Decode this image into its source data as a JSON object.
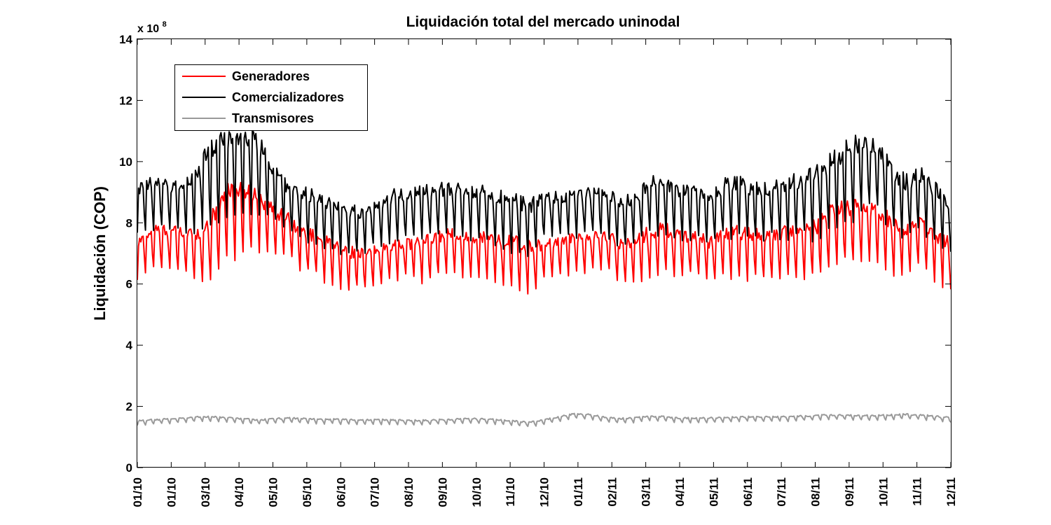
{
  "chart_data": {
    "type": "line",
    "title": "Liquidación total del mercado uninodal",
    "xlabel": "",
    "ylabel": "Liquidación (COP)",
    "y_multiplier_label": "x 10",
    "y_multiplier_exponent": "8",
    "ylim": [
      0,
      14
    ],
    "y_ticks": [
      0,
      2,
      4,
      6,
      8,
      10,
      12,
      14
    ],
    "y_tick_labels": [
      "0",
      "2",
      "4",
      "6",
      "8",
      "10",
      "12",
      "14"
    ],
    "x_tick_labels": [
      "01/10",
      "01/10",
      "03/10",
      "04/10",
      "05/10",
      "05/10",
      "06/10",
      "07/10",
      "08/10",
      "09/10",
      "10/10",
      "11/10",
      "12/10",
      "01/11",
      "02/11",
      "03/11",
      "04/11",
      "05/11",
      "06/11",
      "07/11",
      "08/11",
      "09/11",
      "10/11",
      "11/11",
      "12/11"
    ],
    "xlim": [
      0,
      24
    ],
    "grid": false,
    "legend_position": "top-left",
    "series": [
      {
        "name": "Generadores",
        "color": "#ff0000",
        "base": [
          7.0,
          7.4,
          7.4,
          7.3,
          7.3,
          7.5,
          8.5,
          8.6,
          8.4,
          8.0,
          7.8,
          7.3,
          7.2,
          6.9,
          6.7,
          6.7,
          6.8,
          7.0,
          7.0,
          7.0,
          7.2,
          7.3,
          7.2,
          7.2,
          7.0,
          7.0,
          6.8,
          7.0,
          7.1,
          7.2,
          7.2,
          7.3,
          7.0,
          7.0,
          7.3,
          7.4,
          7.2,
          7.2,
          7.0,
          7.3,
          7.3,
          7.2,
          7.2,
          7.3,
          7.3,
          7.4,
          7.8,
          8.0,
          8.0,
          8.0,
          7.6,
          7.4,
          7.6,
          7.2,
          6.9
        ],
        "amp": [
          0.6,
          0.7,
          0.7,
          0.7,
          0.8,
          1.2,
          1.3,
          1.1,
          1.0,
          0.8,
          0.7,
          0.7,
          0.7,
          0.7,
          0.7,
          0.6,
          0.6,
          0.6,
          0.6,
          0.7,
          0.7,
          0.7,
          0.7,
          0.7,
          0.8,
          0.8,
          0.8,
          0.6,
          0.6,
          0.6,
          0.6,
          0.6,
          0.7,
          0.7,
          0.8,
          0.8,
          0.7,
          0.7,
          0.7,
          0.8,
          0.8,
          0.8,
          0.8,
          0.8,
          0.8,
          0.9,
          1.0,
          1.0,
          1.0,
          0.9,
          0.9,
          0.8,
          0.8,
          0.8,
          0.8
        ]
      },
      {
        "name": "Comercializadores",
        "color": "#000000",
        "base": [
          8.6,
          8.9,
          8.8,
          8.8,
          9.1,
          9.8,
          10.0,
          10.2,
          10.0,
          9.2,
          8.8,
          8.6,
          8.4,
          8.2,
          8.0,
          8.0,
          8.2,
          8.5,
          8.5,
          8.6,
          8.7,
          8.7,
          8.6,
          8.6,
          8.4,
          8.3,
          8.1,
          8.4,
          8.5,
          8.5,
          8.6,
          8.6,
          8.3,
          8.4,
          8.8,
          8.9,
          8.6,
          8.6,
          8.4,
          8.8,
          8.8,
          8.7,
          8.7,
          8.8,
          8.9,
          9.0,
          9.4,
          9.7,
          10.0,
          9.9,
          9.2,
          8.8,
          9.1,
          8.6,
          8.2
        ],
        "amp": [
          0.8,
          0.8,
          0.8,
          0.8,
          1.0,
          1.5,
          1.6,
          1.4,
          1.3,
          0.9,
          0.8,
          0.8,
          0.8,
          0.8,
          0.8,
          0.7,
          0.7,
          0.8,
          0.8,
          0.8,
          0.8,
          0.8,
          0.8,
          0.8,
          0.9,
          0.9,
          0.9,
          0.7,
          0.7,
          0.7,
          0.7,
          0.7,
          0.8,
          0.8,
          0.9,
          0.9,
          0.8,
          0.8,
          0.8,
          0.9,
          0.9,
          0.9,
          0.9,
          1.0,
          1.0,
          1.1,
          1.2,
          1.3,
          1.3,
          1.1,
          1.1,
          1.0,
          1.0,
          0.9,
          0.8
        ]
      },
      {
        "name": "Transmisores",
        "color": "#999999",
        "base": [
          1.48,
          1.52,
          1.55,
          1.58,
          1.62,
          1.62,
          1.6,
          1.55,
          1.52,
          1.55,
          1.58,
          1.56,
          1.54,
          1.54,
          1.52,
          1.52,
          1.52,
          1.52,
          1.5,
          1.5,
          1.52,
          1.54,
          1.56,
          1.55,
          1.52,
          1.48,
          1.44,
          1.52,
          1.62,
          1.72,
          1.7,
          1.6,
          1.56,
          1.58,
          1.64,
          1.62,
          1.58,
          1.58,
          1.58,
          1.6,
          1.62,
          1.62,
          1.62,
          1.62,
          1.64,
          1.66,
          1.68,
          1.68,
          1.66,
          1.66,
          1.68,
          1.7,
          1.68,
          1.64,
          1.58
        ],
        "amp": [
          0.08,
          0.08,
          0.08,
          0.08,
          0.08,
          0.08,
          0.08,
          0.08,
          0.08,
          0.08,
          0.08,
          0.08,
          0.08,
          0.08,
          0.08,
          0.08,
          0.08,
          0.08,
          0.08,
          0.08,
          0.08,
          0.08,
          0.08,
          0.08,
          0.08,
          0.08,
          0.08,
          0.08,
          0.08,
          0.08,
          0.08,
          0.08,
          0.08,
          0.08,
          0.08,
          0.08,
          0.08,
          0.08,
          0.08,
          0.08,
          0.08,
          0.08,
          0.08,
          0.08,
          0.08,
          0.08,
          0.08,
          0.08,
          0.08,
          0.08,
          0.08,
          0.08,
          0.08,
          0.08,
          0.08
        ]
      }
    ]
  }
}
